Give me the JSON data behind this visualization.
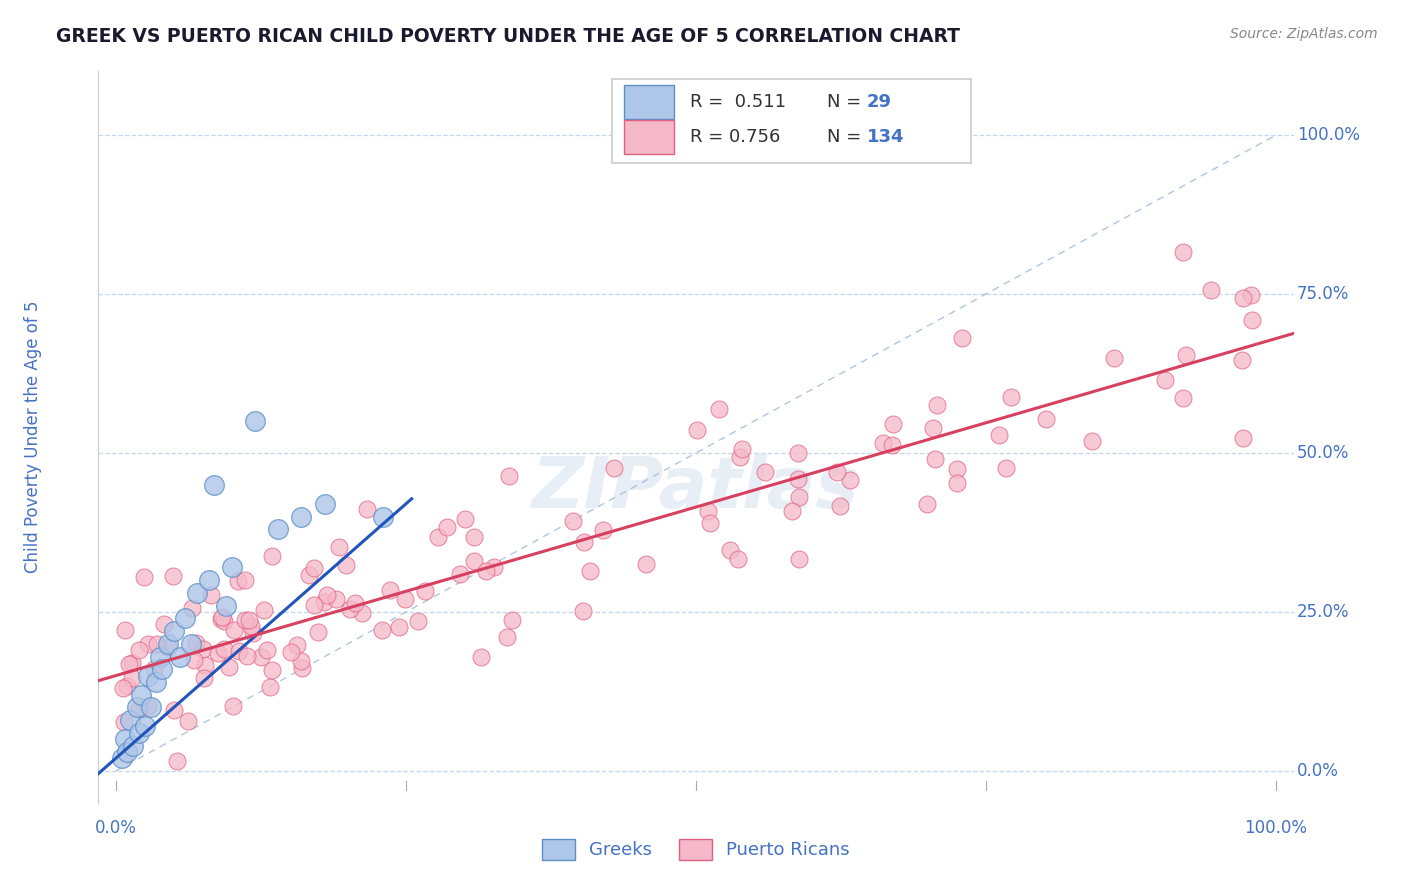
{
  "title": "GREEK VS PUERTO RICAN CHILD POVERTY UNDER THE AGE OF 5 CORRELATION CHART",
  "source": "Source: ZipAtlas.com",
  "ylabel": "Child Poverty Under the Age of 5",
  "ytick_labels": [
    "0.0%",
    "25.0%",
    "50.0%",
    "75.0%",
    "100.0%"
  ],
  "watermark_text": "ZIPatlas",
  "greek_color": "#aec6e8",
  "greek_edge_color": "#5b8fc9",
  "pr_color": "#f5b8c8",
  "pr_edge_color": "#e06080",
  "blue_line_color": "#2255bb",
  "pink_line_color": "#d84060",
  "ref_line_color": "#9ab8d8",
  "bg_color": "#ffffff",
  "grid_color": "#c5d8ea",
  "title_color": "#1a1a2e",
  "axis_label_color": "#4472c4",
  "legend_text_color": "#333333",
  "source_color": "#888888"
}
